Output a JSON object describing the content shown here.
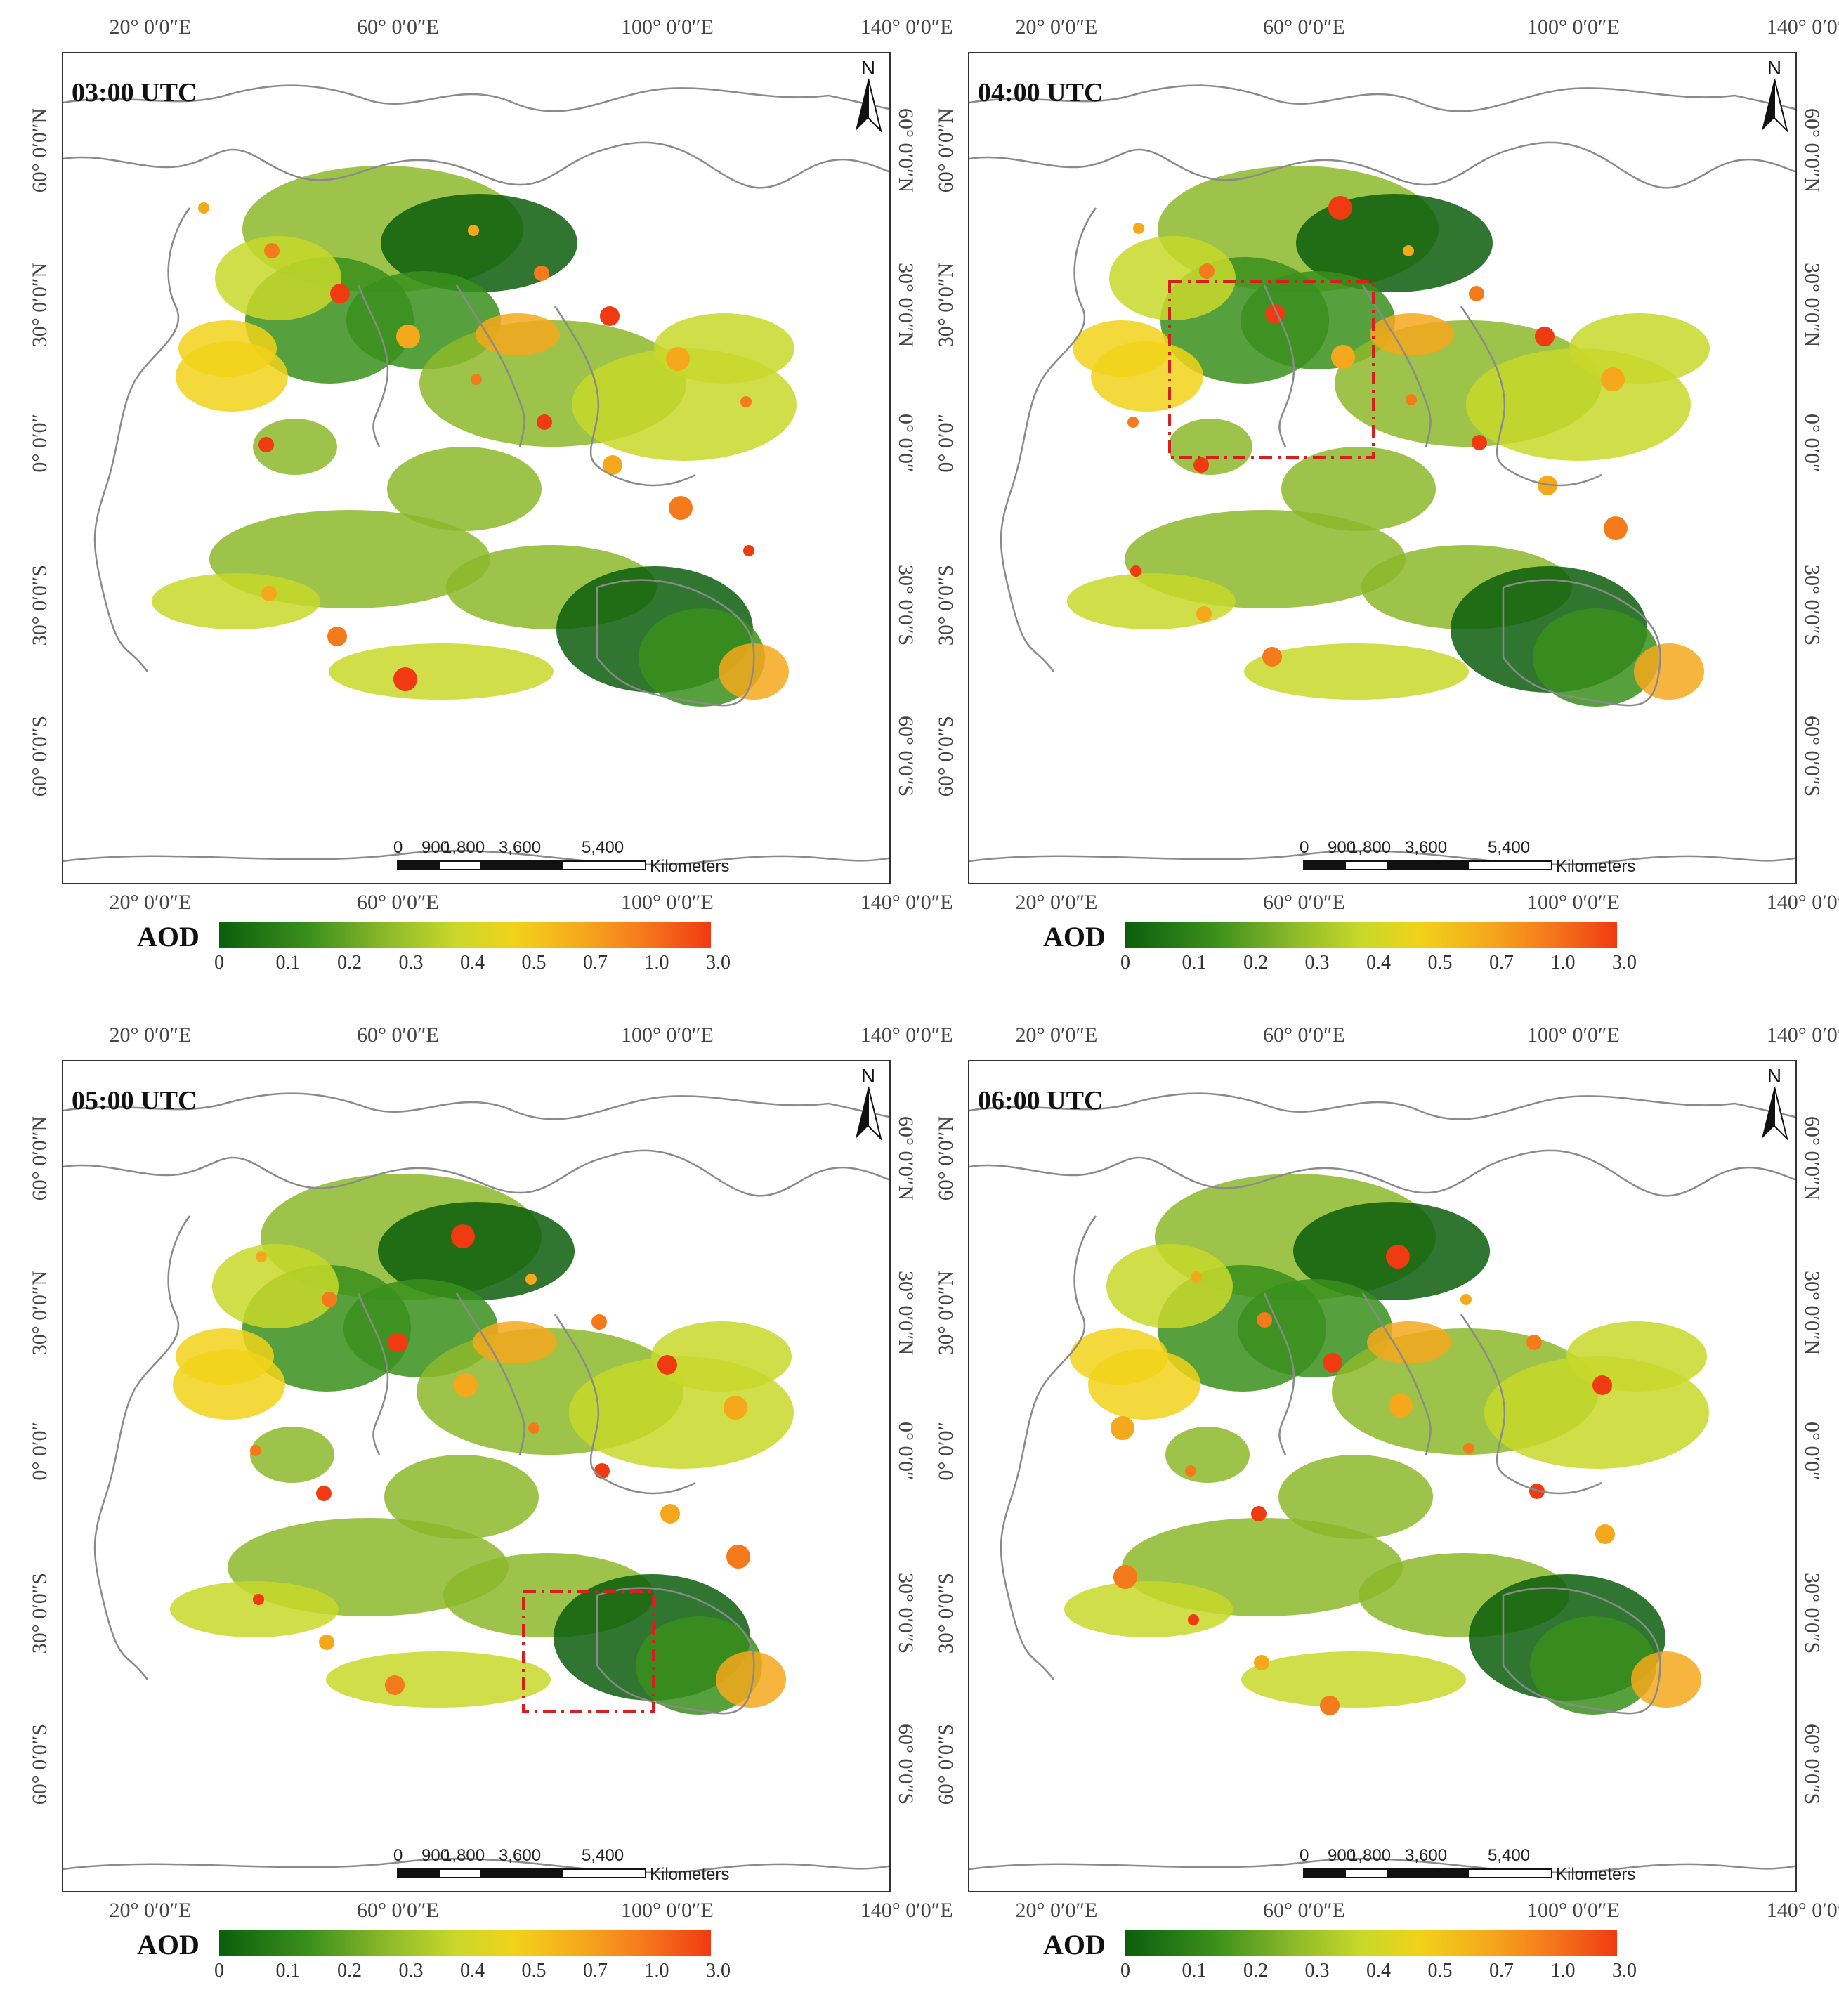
{
  "panels": [
    {
      "time": "03:00 UTC",
      "highlight": false
    },
    {
      "time": "04:00 UTC",
      "highlight": true
    },
    {
      "time": "05:00 UTC",
      "highlight": true
    },
    {
      "time": "06:00 UTC",
      "highlight": false
    }
  ],
  "axes": {
    "lon_labels": [
      "20° 0′0″E",
      "60° 0′0″E",
      "100° 0′0″E",
      "140° 0′0″E"
    ],
    "lat_labels": [
      "60° 0′0″N",
      "30° 0′0″N",
      "0° 0′0″",
      "30° 0′0″S",
      "60° 0′0″S"
    ]
  },
  "north_arrow": {
    "label": "N"
  },
  "scale_bar": {
    "values": [
      "0",
      "900",
      "1,800",
      "3,600",
      "5,400"
    ],
    "unit": "Kilometers"
  },
  "legend": {
    "title": "AOD",
    "ticks": [
      "0",
      "0.1",
      "0.2",
      "0.3",
      "0.4",
      "0.5",
      "0.7",
      "1.0",
      "3.0"
    ],
    "colors": [
      "#0c5e0c",
      "#3a8f1c",
      "#8cb92a",
      "#c8d82a",
      "#f1d21a",
      "#f5a81c",
      "#f57a1c",
      "#f03a12"
    ]
  },
  "highlight_color": "#d62020"
}
